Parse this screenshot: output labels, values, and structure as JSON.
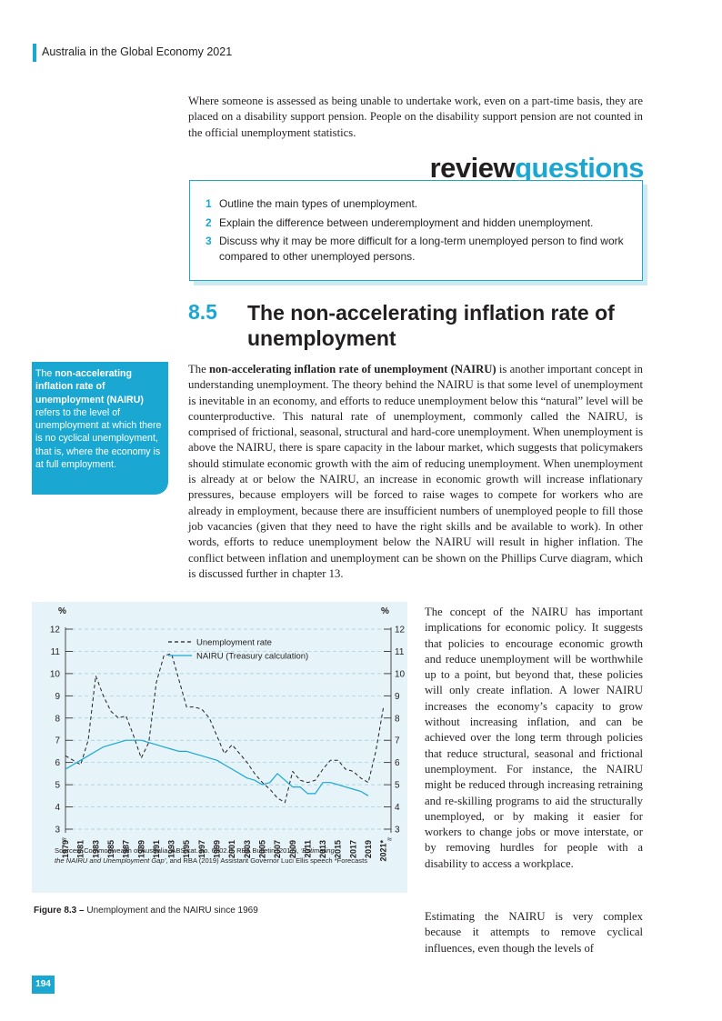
{
  "header": {
    "title": "Australia in the Global Economy 2021"
  },
  "intro_paragraph": "Where someone is assessed as being unable to undertake work, even on a part-time basis, they are placed on a disability support pension. People on the disability support pension are not counted in the official unemployment statistics.",
  "review": {
    "title_part1": "review",
    "title_part2": "questions",
    "questions": [
      {
        "num": "1",
        "text": "Outline the main types of unemployment."
      },
      {
        "num": "2",
        "text": "Explain the difference between underemployment and hidden unemployment."
      },
      {
        "num": "3",
        "text": "Discuss why it may be more difficult for a long-term unemployed person to find work compared to other unemployed persons."
      }
    ]
  },
  "section": {
    "number": "8.5",
    "title": "The non-accelerating inflation rate of unemployment"
  },
  "definition": {
    "lead": "The ",
    "term": "non-accelerating inflation rate of unemployment (NAIRU)",
    "text": " refers to the level of unemployment at which there is no cyclical unemployment, that is, where the economy is at full employment."
  },
  "main_paragraph": {
    "lead": "The ",
    "term": "non-accelerating inflation rate of unemployment (NAIRU)",
    "text": " is another important concept in understanding unemployment. The theory behind the NAIRU is that some level of unemployment is inevitable in an economy, and efforts to reduce unemployment below this “natural” level will be counterproductive. This natural rate of unemployment, commonly called the NAIRU, is comprised of frictional, seasonal, structural and hard-core unemployment. When unemployment is above the NAIRU, there is spare capacity in the labour market, which suggests that policymakers should stimulate economic growth with the aim of reducing unemployment. When unemployment is already at or below the NAIRU, an increase in economic growth will increase inflationary pressures, because employers will be forced to raise wages to compete for workers who are already in employment, because there are insufficient numbers of unemployed people to fill those job vacancies (given that they need to have the right skills and be available to work). In other words, efforts to reduce unemployment below the NAIRU will result in higher inflation. The conflict between inflation and unemployment can be shown on the Phillips Curve diagram, which is discussed further in chapter 13."
  },
  "right_paragraph_1": "The concept of the NAIRU has important implications for economic policy. It suggests that policies to encourage economic growth and reduce unemployment will be worthwhile up to a point, but beyond that, these policies will only create inflation. A lower NAIRU increases the economy’s capacity to grow without increasing inflation, and can be achieved over the long term through policies that reduce structural, seasonal and frictional unemployment. For instance, the NAIRU might be reduced through increasing retraining and re-skilling programs to aid the structurally unemployed, or by making it easier for workers to change jobs or move interstate, or by removing hurdles for people with a disability to access a workplace.",
  "right_paragraph_2": "Estimating the NAIRU is very complex because it attempts to remove cyclical influences, even though the levels of",
  "chart_data": {
    "type": "line",
    "ylabel_left": "%",
    "ylabel_right": "%",
    "ylim": [
      3,
      12
    ],
    "yticks": [
      3,
      4,
      5,
      6,
      7,
      8,
      9,
      10,
      11,
      12
    ],
    "xlim": [
      1979,
      2022
    ],
    "xticks": [
      "1979",
      "1981",
      "1983",
      "1985",
      "1987",
      "1989",
      "1991",
      "1993",
      "1995",
      "1997",
      "1999",
      "2001",
      "2003",
      "2005",
      "2007",
      "2009",
      "2011",
      "2013",
      "2015",
      "2017",
      "2019",
      "2021*"
    ],
    "grid": true,
    "legend_position": "top-center",
    "series": [
      {
        "name": "Unemployment rate",
        "style": "dashed",
        "color": "#231f20",
        "x": [
          1979,
          1980,
          1981,
          1982,
          1983,
          1984,
          1985,
          1986,
          1987,
          1988,
          1989,
          1990,
          1991,
          1992,
          1993,
          1994,
          1995,
          1996,
          1997,
          1998,
          1999,
          2000,
          2001,
          2002,
          2003,
          2004,
          2005,
          2006,
          2007,
          2008,
          2009,
          2010,
          2011,
          2012,
          2013,
          2014,
          2015,
          2016,
          2017,
          2018,
          2019,
          2020,
          2021
        ],
        "y": [
          6.3,
          6.1,
          5.9,
          7.0,
          9.9,
          9.0,
          8.3,
          8.0,
          8.1,
          7.2,
          6.2,
          6.9,
          9.6,
          10.8,
          10.9,
          9.7,
          8.5,
          8.5,
          8.4,
          8.0,
          7.2,
          6.4,
          6.8,
          6.4,
          6.0,
          5.5,
          5.1,
          4.8,
          4.4,
          4.2,
          5.6,
          5.2,
          5.1,
          5.2,
          5.7,
          6.1,
          6.1,
          5.7,
          5.6,
          5.3,
          5.1,
          6.5,
          8.5
        ]
      },
      {
        "name": "NAIRU (Treasury calculation)",
        "style": "solid",
        "color": "#1aa7d1",
        "x": [
          1979,
          1980,
          1981,
          1982,
          1983,
          1984,
          1985,
          1986,
          1987,
          1988,
          1989,
          1990,
          1991,
          1992,
          1993,
          1994,
          1995,
          1996,
          1997,
          1998,
          1999,
          2000,
          2001,
          2002,
          2003,
          2004,
          2005,
          2006,
          2007,
          2008,
          2009,
          2010,
          2011,
          2012,
          2013,
          2014,
          2015,
          2016,
          2017,
          2018,
          2019
        ],
        "y": [
          5.7,
          5.9,
          6.1,
          6.3,
          6.5,
          6.7,
          6.8,
          6.9,
          7.0,
          7.0,
          7.0,
          6.9,
          6.8,
          6.7,
          6.6,
          6.5,
          6.5,
          6.4,
          6.3,
          6.2,
          6.1,
          5.9,
          5.7,
          5.5,
          5.3,
          5.2,
          5.0,
          5.1,
          5.5,
          5.2,
          4.9,
          4.9,
          4.6,
          4.6,
          5.1,
          5.1,
          5.0,
          4.9,
          4.8,
          4.7,
          4.5
        ]
      }
    ],
    "sources": "Sources: Commonwealth of Australia, ABS cat. no. 6202.0, RBA Bulletin (2017), ‘Estimating the NAIRU and Unemployment Gap’, and RBA (2019) Assistant Governor Luci Ellis speech *Forecasts"
  },
  "figure_caption": {
    "label": "Figure 8.3 –",
    "text": " Unemployment and the NAIRU since 1969"
  },
  "page_number": "194",
  "colors": {
    "accent": "#1aa7d1",
    "panel": "#e6f3f8",
    "text": "#231f20"
  }
}
